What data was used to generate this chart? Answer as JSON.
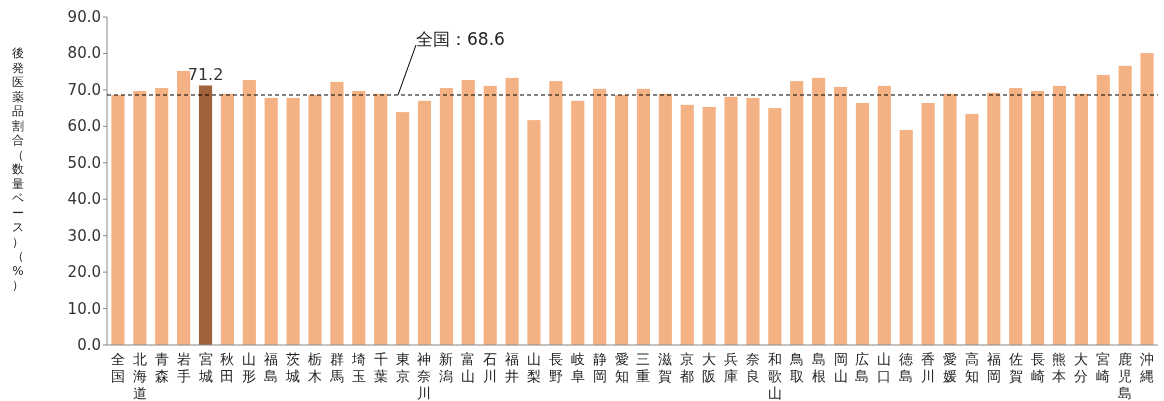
{
  "chart_data": {
    "type": "bar",
    "ylabel": "後発医薬品割合（数量ベース）（%）",
    "categories": [
      "全国",
      "北海道",
      "青森",
      "岩手",
      "宮城",
      "秋田",
      "山形",
      "福島",
      "茨城",
      "栃木",
      "群馬",
      "埼玉",
      "千葉",
      "東京",
      "神奈川",
      "新潟",
      "富山",
      "石川",
      "福井",
      "山梨",
      "長野",
      "岐阜",
      "静岡",
      "愛知",
      "三重",
      "滋賀",
      "京都",
      "大阪",
      "兵庫",
      "奈良",
      "和歌山",
      "鳥取",
      "島根",
      "岡山",
      "広島",
      "山口",
      "徳島",
      "香川",
      "愛媛",
      "高知",
      "福岡",
      "佐賀",
      "長崎",
      "熊本",
      "大分",
      "宮崎",
      "鹿児島",
      "沖縄"
    ],
    "values": [
      68.6,
      69.7,
      70.5,
      75.2,
      71.2,
      68.9,
      72.7,
      67.8,
      67.8,
      68.6,
      72.2,
      69.7,
      68.9,
      63.9,
      67.0,
      70.5,
      72.7,
      71.1,
      73.3,
      61.7,
      72.4,
      67.0,
      70.3,
      68.6,
      70.3,
      68.9,
      65.9,
      65.3,
      68.1,
      67.8,
      65.0,
      72.4,
      73.3,
      70.8,
      66.4,
      71.1,
      59.0,
      66.4,
      68.9,
      63.4,
      69.2,
      70.5,
      69.7,
      71.1,
      68.9,
      74.1,
      76.6,
      80.1
    ],
    "colors": [
      "#f4b183",
      "#f4b183",
      "#f4b183",
      "#f4b183",
      "#a0623a",
      "#f4b183",
      "#f4b183",
      "#f4b183",
      "#f4b183",
      "#f4b183",
      "#f4b183",
      "#f4b183",
      "#f4b183",
      "#f4b183",
      "#f4b183",
      "#f4b183",
      "#f4b183",
      "#f4b183",
      "#f4b183",
      "#f4b183",
      "#f4b183",
      "#f4b183",
      "#f4b183",
      "#f4b183",
      "#f4b183",
      "#f4b183",
      "#f4b183",
      "#f4b183",
      "#f4b183",
      "#f4b183",
      "#f4b183",
      "#f4b183",
      "#f4b183",
      "#f4b183",
      "#f4b183",
      "#f4b183",
      "#f4b183",
      "#f4b183",
      "#f4b183",
      "#f4b183",
      "#f4b183",
      "#f4b183",
      "#f4b183",
      "#f4b183",
      "#f4b183",
      "#f4b183",
      "#f4b183",
      "#f4b183"
    ],
    "value_labels": [
      null,
      null,
      null,
      null,
      "71.2",
      null,
      null,
      null,
      null,
      null,
      null,
      null,
      null,
      null,
      null,
      null,
      null,
      null,
      null,
      null,
      null,
      null,
      null,
      null,
      null,
      null,
      null,
      null,
      null,
      null,
      null,
      null,
      null,
      null,
      null,
      null,
      null,
      null,
      null,
      null,
      null,
      null,
      null,
      null,
      null,
      null,
      null,
      null
    ],
    "ylim": [
      0,
      90
    ],
    "yticks": [
      {
        "value": 0,
        "label": "0.0"
      },
      {
        "value": 10,
        "label": "10.0"
      },
      {
        "value": 20,
        "label": "20.0"
      },
      {
        "value": 30,
        "label": "30.0"
      },
      {
        "value": 40,
        "label": "40.0"
      },
      {
        "value": 50,
        "label": "50.0"
      },
      {
        "value": 60,
        "label": "60.0"
      },
      {
        "value": 70,
        "label": "70.0"
      },
      {
        "value": 80,
        "label": "80.0"
      },
      {
        "value": 90,
        "label": "90.0"
      }
    ],
    "ref_lines": [
      {
        "axis": "y",
        "value": 68.6,
        "label": "全国：68.6",
        "color": "#000000",
        "line_style": "dashed"
      }
    ],
    "grid": false
  }
}
